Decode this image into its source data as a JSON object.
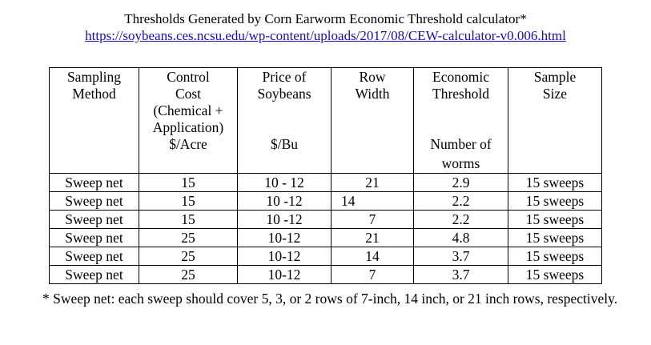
{
  "document": {
    "title": "Thresholds Generated by Corn Earworm Economic Threshold calculator*",
    "link": "https://soybeans.ces.ncsu.edu/wp-content/uploads/2017/08/CEW-calculator-v0.006.html",
    "footnote": "* Sweep net: each sweep should cover 5, 3, or 2 rows of 7-inch, 14 inch, or 21 inch rows, respectively."
  },
  "table": {
    "headers": {
      "method": {
        "line1": "Sampling",
        "line2": "Method"
      },
      "cost": {
        "line1": "Control",
        "line2": "Cost",
        "line3": "(Chemical +",
        "line4": "Application)",
        "unit": "$/Acre"
      },
      "price": {
        "line1": "Price of",
        "line2": "Soybeans",
        "unit": "$/Bu"
      },
      "width": {
        "line1": "Row",
        "line2": "Width"
      },
      "threshold": {
        "line1": "Economic",
        "line2": "Threshold",
        "unit1": "Number of",
        "unit2": "worms"
      },
      "size": {
        "line1": "Sample",
        "line2": "Size"
      }
    },
    "rows": [
      {
        "method": "Sweep net",
        "cost": "15",
        "price": "10 - 12",
        "width": "21",
        "threshold": "2.9",
        "size": "15 sweeps"
      },
      {
        "method": "Sweep net",
        "cost": "15",
        "price": "10 -12",
        "width": "14",
        "threshold": "2.2",
        "size": "15 sweeps"
      },
      {
        "method": "Sweep net",
        "cost": "15",
        "price": "10 -12",
        "width": "7",
        "threshold": "2.2",
        "size": "15 sweeps"
      },
      {
        "method": "Sweep net",
        "cost": "25",
        "price": "10-12",
        "width": "21",
        "threshold": "4.8",
        "size": "15 sweeps"
      },
      {
        "method": "Sweep net",
        "cost": "25",
        "price": "10-12",
        "width": "14",
        "threshold": "3.7",
        "size": "15 sweeps"
      },
      {
        "method": "Sweep net",
        "cost": "25",
        "price": "10-12",
        "width": "7",
        "threshold": "3.7",
        "size": "15 sweeps"
      }
    ]
  },
  "colors": {
    "link": "#1a0dab",
    "text": "#000000",
    "background": "#ffffff"
  }
}
